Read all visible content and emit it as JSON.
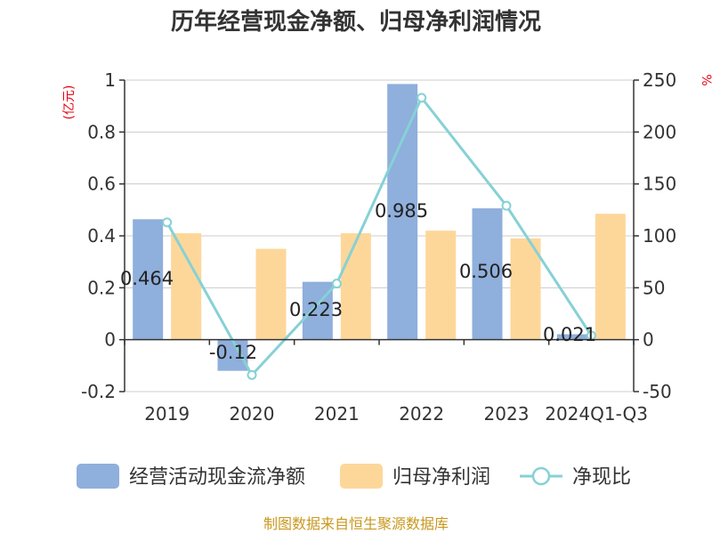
{
  "chart_data": {
    "type": "bar",
    "title": "历年经营现金净额、归母净利润情况",
    "categories": [
      "2019",
      "2020",
      "2021",
      "2022",
      "2023",
      "2024Q1-Q3"
    ],
    "y_left": {
      "unit": "(亿元)",
      "ylim": [
        -0.2,
        1
      ],
      "ticks": [
        "1",
        "0.8",
        "0.6",
        "0.4",
        "0.2",
        "0",
        "-0.2"
      ]
    },
    "y_right": {
      "unit": "%",
      "ylim": [
        -50,
        250
      ],
      "ticks": [
        "250",
        "200",
        "150",
        "100",
        "50",
        "0",
        "-50"
      ]
    },
    "series": [
      {
        "name": "经营活动现金流净额",
        "type": "bar",
        "axis": "left",
        "color": "#8fafdc",
        "values": [
          0.464,
          -0.12,
          0.223,
          0.985,
          0.506,
          0.021
        ],
        "labels": [
          "0.464",
          "-0.12",
          "0.223",
          "0.985",
          "0.506",
          "0.021"
        ]
      },
      {
        "name": "归母净利润",
        "type": "bar",
        "axis": "left",
        "color": "#fdd79a",
        "values": [
          0.41,
          0.35,
          0.41,
          0.42,
          0.39,
          0.485
        ]
      },
      {
        "name": "净现比",
        "type": "line",
        "axis": "right",
        "color": "#86d1d6",
        "values": [
          113,
          -34,
          54,
          233,
          129,
          4
        ]
      }
    ],
    "grid": true,
    "legend": "bottom"
  },
  "source": "制图数据来自恒生聚源数据库"
}
